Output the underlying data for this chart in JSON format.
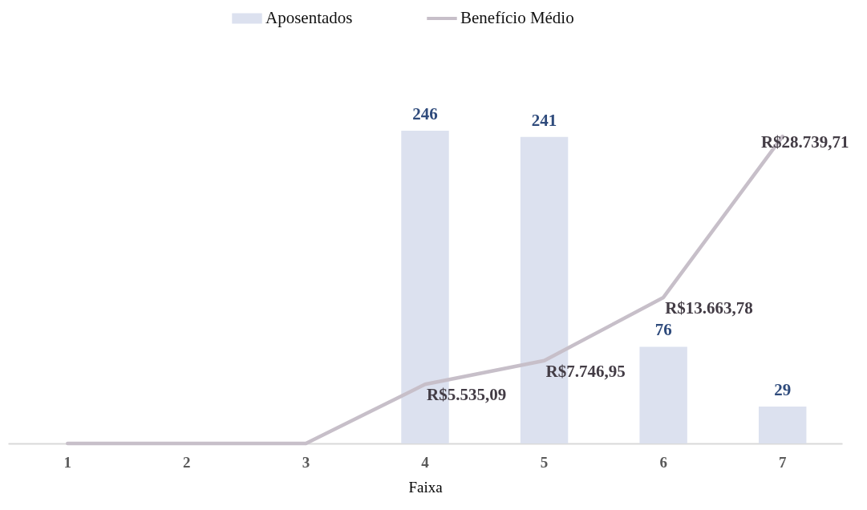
{
  "chart_data": {
    "type": "bar",
    "xlabel": "Faixa",
    "categories": [
      "1",
      "2",
      "3",
      "4",
      "5",
      "6",
      "7"
    ],
    "legend": "top",
    "tick_labels": "x",
    "series": [
      {
        "name": "Aposentados",
        "color": "#dce1ef",
        "values": [
          null,
          null,
          null,
          246,
          241,
          76,
          29
        ],
        "value_labels": [
          null,
          null,
          null,
          "246",
          "241",
          "76",
          "29"
        ]
      },
      {
        "name": "Benefício Médio",
        "type": "line",
        "axis": "y2",
        "color": "#c7bfc9",
        "values": [
          0,
          0,
          0,
          5535.09,
          7746.95,
          13663.78,
          28739.71
        ],
        "value_labels": [
          null,
          null,
          null,
          "R$5.535,09",
          "R$7.746,95",
          "R$13.663,78",
          "R$28.739,71"
        ]
      }
    ]
  }
}
